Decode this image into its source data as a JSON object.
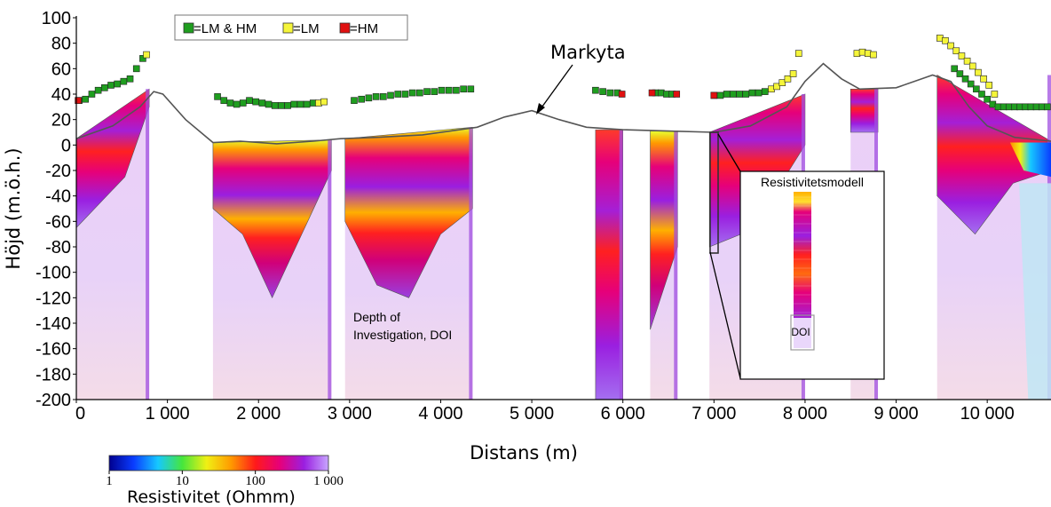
{
  "chart_data": {
    "type": "heatmap",
    "title": "",
    "xlabel": "Distans (m)",
    "ylabel": "Höjd (m.ö.h.)",
    "xlim": [
      0,
      10700
    ],
    "ylim": [
      -200,
      100
    ],
    "x_ticks": [
      {
        "value": 0,
        "label": "0"
      },
      {
        "value": 1000,
        "label": "1 000"
      },
      {
        "value": 2000,
        "label": "2 000"
      },
      {
        "value": 3000,
        "label": "3 000"
      },
      {
        "value": 4000,
        "label": "4 000"
      },
      {
        "value": 5000,
        "label": "5 000"
      },
      {
        "value": 6000,
        "label": "6 000"
      },
      {
        "value": 7000,
        "label": "7 000"
      },
      {
        "value": 8000,
        "label": "8 000"
      },
      {
        "value": 9000,
        "label": "9 000"
      },
      {
        "value": 10000,
        "label": "10 000"
      }
    ],
    "y_ticks": [
      {
        "value": 100,
        "label": "100"
      },
      {
        "value": 80,
        "label": "80"
      },
      {
        "value": 60,
        "label": "60"
      },
      {
        "value": 40,
        "label": "40"
      },
      {
        "value": 20,
        "label": "20"
      },
      {
        "value": 0,
        "label": "0"
      },
      {
        "value": -20,
        "label": "-20"
      },
      {
        "value": -40,
        "label": "-40"
      },
      {
        "value": -60,
        "label": "-60"
      },
      {
        "value": -80,
        "label": "-80"
      },
      {
        "value": -100,
        "label": "-100"
      },
      {
        "value": -120,
        "label": "-120"
      },
      {
        "value": -140,
        "label": "-140"
      },
      {
        "value": -160,
        "label": "-160"
      },
      {
        "value": -180,
        "label": "-180"
      },
      {
        "value": -200,
        "label": "-200"
      }
    ],
    "legend": {
      "placement": "top-left",
      "items": [
        {
          "label": "=LM & HM",
          "color": "#1f9e1f"
        },
        {
          "label": "=LM",
          "color": "#f5f53a"
        },
        {
          "label": "=HM",
          "color": "#e01010"
        }
      ]
    },
    "surface_line": {
      "name": "Markyta",
      "x": [
        0,
        400,
        700,
        850,
        950,
        1200,
        1500,
        1800,
        2200,
        2600,
        2900,
        3300,
        3800,
        4400,
        4700,
        5000,
        5300,
        5600,
        6000,
        6500,
        7000,
        7400,
        7800,
        8000,
        8200,
        8400,
        8600,
        9000,
        9400,
        9600,
        9800,
        10000,
        10300,
        10700
      ],
      "y": [
        5,
        15,
        30,
        42,
        40,
        20,
        2,
        3,
        1,
        3,
        5,
        6,
        8,
        14,
        22,
        27,
        20,
        14,
        12,
        11,
        10,
        15,
        30,
        50,
        64,
        52,
        44,
        45,
        55,
        50,
        30,
        15,
        6,
        3
      ]
    },
    "sections": [
      {
        "x": [
          0,
          800
        ],
        "surface": [
          5,
          44
        ],
        "doi": [
          -65,
          -45,
          -25,
          30
        ]
      },
      {
        "x": [
          1500,
          2800
        ],
        "surface": [
          2,
          4
        ],
        "doi": [
          -50,
          -70,
          -120,
          -70,
          -20
        ]
      },
      {
        "x": [
          2950,
          4350
        ],
        "surface": [
          5,
          14
        ],
        "doi": [
          -60,
          -110,
          -120,
          -70,
          -50
        ]
      },
      {
        "x": [
          5700,
          6000
        ],
        "surface": [
          12,
          12
        ],
        "doi": [
          -200,
          -200
        ]
      },
      {
        "x": [
          6300,
          6600
        ],
        "surface": [
          11,
          11
        ],
        "doi": [
          -145,
          -80
        ]
      },
      {
        "x": [
          6950,
          8000
        ],
        "surface": [
          10,
          40
        ],
        "doi": [
          -80,
          -70,
          -40,
          0
        ]
      },
      {
        "x": [
          8500,
          8800
        ],
        "surface": [
          44,
          44
        ],
        "doi": [
          10,
          10
        ]
      },
      {
        "x": [
          9450,
          10700
        ],
        "surface": [
          55,
          3
        ],
        "doi": [
          -40,
          -70,
          -30,
          -20
        ]
      }
    ],
    "marker_series": [
      {
        "name": "=LM & HM",
        "x": [
          30,
          100,
          170,
          240,
          310,
          380,
          450,
          520,
          590,
          660,
          730,
          1550,
          1620,
          1690,
          1760,
          1830,
          1900,
          1970,
          2040,
          2110,
          2180,
          2250,
          2320,
          2390,
          2460,
          2530,
          2600,
          3050,
          3130,
          3210,
          3290,
          3370,
          3450,
          3530,
          3610,
          3690,
          3770,
          3850,
          3930,
          4010,
          4090,
          4170,
          4250,
          4330,
          5700,
          5780,
          5860,
          5940,
          6360,
          6420,
          6480,
          6540,
          7000,
          7070,
          7140,
          7210,
          7280,
          7350,
          7420,
          7490,
          7560,
          9640,
          9700,
          9760,
          9820,
          9880,
          9940,
          10000,
          10060,
          10120,
          10180,
          10240,
          10300,
          10360,
          10420,
          10480,
          10540,
          10600,
          10660
        ],
        "y": [
          35,
          36,
          40,
          43,
          45,
          47,
          48,
          50,
          52,
          60,
          68,
          38,
          35,
          33,
          32,
          33,
          35,
          34,
          33,
          32,
          31,
          31,
          31,
          32,
          32,
          32,
          33,
          35,
          36,
          37,
          38,
          38,
          39,
          40,
          40,
          41,
          41,
          42,
          42,
          43,
          43,
          43,
          44,
          44,
          43,
          42,
          41,
          41,
          41,
          41,
          40,
          40,
          39,
          39,
          40,
          40,
          40,
          40,
          41,
          41,
          42,
          60,
          56,
          52,
          48,
          44,
          40,
          36,
          32,
          30,
          30,
          30,
          30,
          30,
          30,
          30,
          30,
          30,
          30
        ]
      },
      {
        "name": "=LM",
        "x": [
          770,
          2660,
          2720,
          7630,
          7690,
          7750,
          7810,
          7870,
          7930,
          8570,
          8630,
          8690,
          8750,
          9480,
          9540,
          9600,
          9660,
          9720,
          9780,
          9840,
          9900,
          9960,
          10020,
          10080
        ],
        "y": [
          71,
          33,
          34,
          44,
          46,
          49,
          52,
          56,
          72,
          72,
          73,
          72,
          71,
          84,
          82,
          78,
          74,
          70,
          66,
          62,
          57,
          52,
          47,
          40
        ]
      },
      {
        "name": "=HM",
        "x": [
          20,
          5990,
          6320,
          6590,
          7000
        ],
        "y": [
          35,
          40,
          41,
          40,
          39
        ]
      }
    ],
    "annotations": [
      {
        "text": "Markyta",
        "x": 5350,
        "y": 73,
        "arrow_to": [
          4850,
          27
        ]
      },
      {
        "text": "Depth of Investigation, DOI",
        "x": 3050,
        "y": -140
      }
    ],
    "inset": {
      "title": "Resistivitetsmodell",
      "label": "DOI"
    },
    "colorbar": {
      "title": "Resistivitet (Ohmm)",
      "scale": "log",
      "range": [
        1,
        1000
      ],
      "ticks": [
        {
          "value": 1,
          "label": "1"
        },
        {
          "value": 10,
          "label": "10"
        },
        {
          "value": 100,
          "label": "100"
        },
        {
          "value": 1000,
          "label": "1 000"
        }
      ],
      "colors": [
        "#00008f",
        "#0a3cff",
        "#16c8ff",
        "#46e63c",
        "#f0f014",
        "#ff9a00",
        "#ff1a1a",
        "#e6007a",
        "#9a1fe0",
        "#c8a6ff"
      ]
    }
  }
}
